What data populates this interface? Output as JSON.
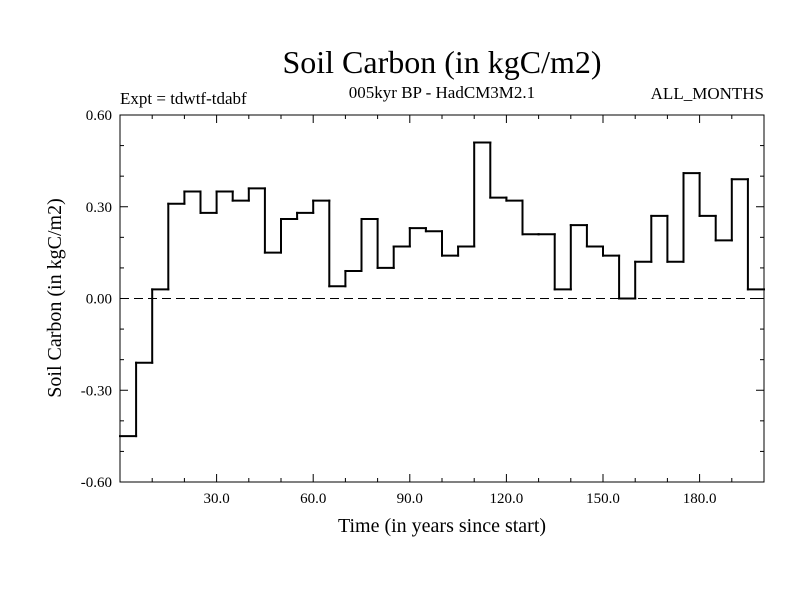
{
  "chart_data": {
    "type": "line",
    "step": true,
    "title": "Soil Carbon (in kgC/m2)",
    "subtitle": "005kyr BP - HadCM3M2.1",
    "experiment": "Expt = tdwtf-tdabf",
    "period": "ALL_MONTHS",
    "xlabel": "Time (in years since start)",
    "ylabel": "Soil Carbon (in kgC/m2)",
    "xlim": [
      0,
      200
    ],
    "ylim": [
      -0.6,
      0.6
    ],
    "xticks": [
      30,
      60,
      90,
      120,
      150,
      180
    ],
    "xtick_labels": [
      "30.0",
      "60.0",
      "90.0",
      "120.0",
      "150.0",
      "180.0"
    ],
    "yticks": [
      -0.6,
      -0.3,
      0.0,
      0.3,
      0.6
    ],
    "ytick_labels": [
      "-0.60",
      "-0.30",
      "0.00",
      "0.30",
      "0.60"
    ],
    "zero_line": true,
    "bin_width": 5,
    "series": [
      {
        "name": "Soil Carbon",
        "x_start": [
          0,
          5,
          10,
          15,
          20,
          25,
          30,
          35,
          40,
          45,
          50,
          55,
          60,
          65,
          70,
          75,
          80,
          85,
          90,
          95,
          100,
          105,
          110,
          115,
          120,
          125,
          130,
          135,
          140,
          145,
          150,
          155,
          160,
          165,
          170,
          175,
          180,
          185,
          190,
          195
        ],
        "values": [
          -0.45,
          -0.21,
          0.03,
          0.31,
          0.35,
          0.28,
          0.35,
          0.32,
          0.36,
          0.15,
          0.26,
          0.28,
          0.32,
          0.04,
          0.09,
          0.26,
          0.1,
          0.17,
          0.23,
          0.22,
          0.14,
          0.17,
          0.51,
          0.33,
          0.32,
          0.21,
          0.21,
          0.03,
          0.24,
          0.17,
          0.14,
          0.0,
          0.12,
          0.27,
          0.12,
          0.41,
          0.27,
          0.19,
          0.39,
          0.03
        ]
      }
    ]
  }
}
